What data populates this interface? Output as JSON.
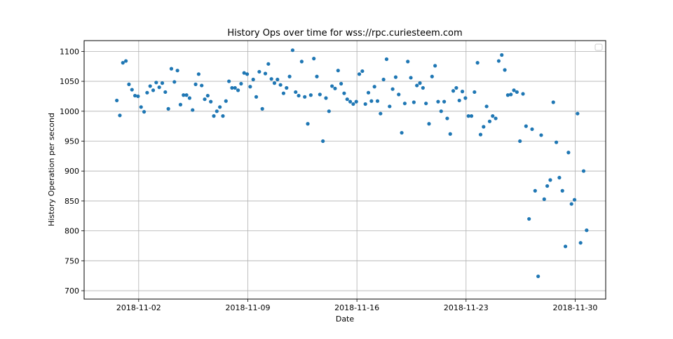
{
  "chart_data": {
    "type": "scatter",
    "title": "History Ops over time for wss://rpc.curiesteem.com",
    "xlabel": "Date",
    "ylabel": "History Operation per second",
    "xlim": [
      "2018-10-29T12:00",
      "2018-12-01T23:00"
    ],
    "ylim": [
      686,
      1118
    ],
    "x_ticks": [
      "2018-11-02",
      "2018-11-09",
      "2018-11-16",
      "2018-11-23",
      "2018-11-30"
    ],
    "y_ticks": [
      700,
      750,
      800,
      850,
      900,
      950,
      1000,
      1050,
      1100
    ],
    "grid": true,
    "legend": "top-right (empty)",
    "marker_color": "#1f77b4",
    "series": [
      {
        "points": [
          [
            "2018-10-31T14:20",
            1018
          ],
          [
            "2018-10-31T19:00",
            993
          ],
          [
            "2018-10-31T23:40",
            1081
          ],
          [
            "2018-11-01T04:20",
            1084
          ],
          [
            "2018-11-01T09:00",
            1045
          ],
          [
            "2018-11-01T13:40",
            1036
          ],
          [
            "2018-11-01T18:20",
            1026
          ],
          [
            "2018-11-01T23:00",
            1025
          ],
          [
            "2018-11-02T03:40",
            1007
          ],
          [
            "2018-11-02T08:20",
            999
          ],
          [
            "2018-11-02T13:00",
            1031
          ],
          [
            "2018-11-02T17:40",
            1042
          ],
          [
            "2018-11-02T22:20",
            1035
          ],
          [
            "2018-11-03T03:00",
            1048
          ],
          [
            "2018-11-03T07:40",
            1040
          ],
          [
            "2018-11-03T12:20",
            1047
          ],
          [
            "2018-11-03T17:00",
            1032
          ],
          [
            "2018-11-03T21:40",
            1004
          ],
          [
            "2018-11-04T02:20",
            1071
          ],
          [
            "2018-11-04T07:00",
            1049
          ],
          [
            "2018-11-04T11:40",
            1068
          ],
          [
            "2018-11-04T16:20",
            1011
          ],
          [
            "2018-11-04T21:00",
            1027
          ],
          [
            "2018-11-05T01:40",
            1027
          ],
          [
            "2018-11-05T06:20",
            1022
          ],
          [
            "2018-11-05T11:00",
            1002
          ],
          [
            "2018-11-05T15:40",
            1045
          ],
          [
            "2018-11-05T20:20",
            1062
          ],
          [
            "2018-11-06T01:00",
            1043
          ],
          [
            "2018-11-06T05:40",
            1020
          ],
          [
            "2018-11-06T10:20",
            1026
          ],
          [
            "2018-11-06T15:00",
            1016
          ],
          [
            "2018-11-06T19:40",
            992
          ],
          [
            "2018-11-07T00:20",
            1000
          ],
          [
            "2018-11-07T05:00",
            1007
          ],
          [
            "2018-11-07T09:40",
            992
          ],
          [
            "2018-11-07T14:20",
            1017
          ],
          [
            "2018-11-07T19:00",
            1050
          ],
          [
            "2018-11-07T23:40",
            1039
          ],
          [
            "2018-11-08T04:20",
            1039
          ],
          [
            "2018-11-08T09:00",
            1035
          ],
          [
            "2018-11-08T13:40",
            1046
          ],
          [
            "2018-11-08T18:20",
            1064
          ],
          [
            "2018-11-08T23:00",
            1062
          ],
          [
            "2018-11-09T03:40",
            1041
          ],
          [
            "2018-11-09T08:20",
            1053
          ],
          [
            "2018-11-09T13:00",
            1024
          ],
          [
            "2018-11-09T17:40",
            1066
          ],
          [
            "2018-11-09T22:20",
            1004
          ],
          [
            "2018-11-10T03:00",
            1063
          ],
          [
            "2018-11-10T07:40",
            1079
          ],
          [
            "2018-11-10T12:20",
            1054
          ],
          [
            "2018-11-10T17:00",
            1047
          ],
          [
            "2018-11-10T21:40",
            1053
          ],
          [
            "2018-11-11T02:20",
            1044
          ],
          [
            "2018-11-11T07:00",
            1030
          ],
          [
            "2018-11-11T11:40",
            1039
          ],
          [
            "2018-11-11T16:20",
            1058
          ],
          [
            "2018-11-11T21:00",
            1102
          ],
          [
            "2018-11-12T01:40",
            1032
          ],
          [
            "2018-11-12T06:20",
            1026
          ],
          [
            "2018-11-12T11:00",
            1083
          ],
          [
            "2018-11-12T15:40",
            1024
          ],
          [
            "2018-11-12T20:20",
            979
          ],
          [
            "2018-11-13T01:00",
            1027
          ],
          [
            "2018-11-13T05:40",
            1088
          ],
          [
            "2018-11-13T10:20",
            1058
          ],
          [
            "2018-11-13T15:00",
            1028
          ],
          [
            "2018-11-13T19:40",
            950
          ],
          [
            "2018-11-14T00:20",
            1022
          ],
          [
            "2018-11-14T05:00",
            1000
          ],
          [
            "2018-11-14T09:40",
            1042
          ],
          [
            "2018-11-14T14:20",
            1038
          ],
          [
            "2018-11-14T19:00",
            1068
          ],
          [
            "2018-11-14T23:40",
            1046
          ],
          [
            "2018-11-15T04:20",
            1030
          ],
          [
            "2018-11-15T09:00",
            1020
          ],
          [
            "2018-11-15T13:40",
            1016
          ],
          [
            "2018-11-15T18:20",
            1012
          ],
          [
            "2018-11-15T23:00",
            1016
          ],
          [
            "2018-11-16T03:40",
            1062
          ],
          [
            "2018-11-16T08:20",
            1067
          ],
          [
            "2018-11-16T13:00",
            1012
          ],
          [
            "2018-11-16T17:40",
            1031
          ],
          [
            "2018-11-16T22:20",
            1017
          ],
          [
            "2018-11-17T03:00",
            1041
          ],
          [
            "2018-11-17T07:40",
            1017
          ],
          [
            "2018-11-17T12:20",
            996
          ],
          [
            "2018-11-17T17:00",
            1053
          ],
          [
            "2018-11-17T21:40",
            1087
          ],
          [
            "2018-11-18T02:20",
            1008
          ],
          [
            "2018-11-18T07:00",
            1037
          ],
          [
            "2018-11-18T11:40",
            1057
          ],
          [
            "2018-11-18T16:20",
            1028
          ],
          [
            "2018-11-18T21:00",
            964
          ],
          [
            "2018-11-19T01:40",
            1013
          ],
          [
            "2018-11-19T06:20",
            1083
          ],
          [
            "2018-11-19T11:00",
            1056
          ],
          [
            "2018-11-19T15:40",
            1015
          ],
          [
            "2018-11-19T20:20",
            1043
          ],
          [
            "2018-11-20T01:00",
            1047
          ],
          [
            "2018-11-20T05:40",
            1039
          ],
          [
            "2018-11-20T10:20",
            1013
          ],
          [
            "2018-11-20T15:00",
            979
          ],
          [
            "2018-11-20T19:40",
            1058
          ],
          [
            "2018-11-21T00:20",
            1076
          ],
          [
            "2018-11-21T05:00",
            1016
          ],
          [
            "2018-11-21T09:40",
            1000
          ],
          [
            "2018-11-21T14:20",
            1016
          ],
          [
            "2018-11-21T19:00",
            988
          ],
          [
            "2018-11-21T23:40",
            962
          ],
          [
            "2018-11-22T04:20",
            1034
          ],
          [
            "2018-11-22T09:00",
            1039
          ],
          [
            "2018-11-22T13:40",
            1018
          ],
          [
            "2018-11-22T18:20",
            1033
          ],
          [
            "2018-11-22T23:00",
            1022
          ],
          [
            "2018-11-23T03:40",
            992
          ],
          [
            "2018-11-23T08:20",
            992
          ],
          [
            "2018-11-23T13:00",
            1032
          ],
          [
            "2018-11-23T17:40",
            1081
          ],
          [
            "2018-11-23T22:20",
            961
          ],
          [
            "2018-11-24T03:00",
            974
          ],
          [
            "2018-11-24T07:40",
            1008
          ],
          [
            "2018-11-24T12:20",
            983
          ],
          [
            "2018-11-24T17:00",
            992
          ],
          [
            "2018-11-24T21:40",
            988
          ],
          [
            "2018-11-25T02:20",
            1084
          ],
          [
            "2018-11-25T07:00",
            1094
          ],
          [
            "2018-11-25T11:40",
            1069
          ],
          [
            "2018-11-25T16:20",
            1027
          ],
          [
            "2018-11-25T21:00",
            1028
          ],
          [
            "2018-11-26T01:40",
            1035
          ],
          [
            "2018-11-26T06:20",
            1032
          ],
          [
            "2018-11-26T11:00",
            950
          ],
          [
            "2018-11-26T15:40",
            1029
          ],
          [
            "2018-11-26T20:20",
            975
          ],
          [
            "2018-11-27T01:00",
            820
          ],
          [
            "2018-11-27T05:40",
            970
          ],
          [
            "2018-11-27T10:20",
            867
          ],
          [
            "2018-11-27T15:00",
            724
          ],
          [
            "2018-11-27T19:40",
            960
          ],
          [
            "2018-11-28T00:20",
            853
          ],
          [
            "2018-11-28T05:00",
            875
          ],
          [
            "2018-11-28T09:40",
            885
          ],
          [
            "2018-11-28T14:20",
            1015
          ],
          [
            "2018-11-28T19:00",
            948
          ],
          [
            "2018-11-28T23:40",
            889
          ],
          [
            "2018-11-29T04:20",
            867
          ],
          [
            "2018-11-29T09:00",
            774
          ],
          [
            "2018-11-29T13:40",
            931
          ],
          [
            "2018-11-29T18:20",
            845
          ],
          [
            "2018-11-29T23:00",
            852
          ],
          [
            "2018-11-30T03:40",
            996
          ],
          [
            "2018-11-30T08:20",
            780
          ],
          [
            "2018-11-30T13:00",
            900
          ],
          [
            "2018-11-30T17:40",
            801
          ]
        ]
      }
    ]
  }
}
